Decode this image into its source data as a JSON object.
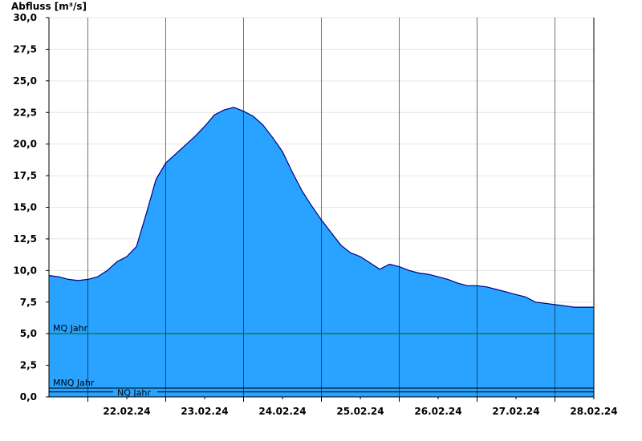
{
  "chart_data": {
    "type": "area",
    "ylabel": "Abfluss [m³/s]",
    "ylim": [
      0,
      30
    ],
    "yticks": [
      "0,0",
      "2,5",
      "5,0",
      "7,5",
      "10,0",
      "12,5",
      "15,0",
      "17,5",
      "20,0",
      "22,5",
      "25,0",
      "27,5",
      "30,0"
    ],
    "ytick_values": [
      0,
      2.5,
      5,
      7.5,
      10,
      12.5,
      15,
      17.5,
      20,
      22.5,
      25,
      27.5,
      30
    ],
    "xlim": [
      "2024-02-21T12:00",
      "2024-02-28T12:00"
    ],
    "xtick_labels": [
      "22.02.24",
      "23.02.24",
      "24.02.24",
      "25.02.24",
      "26.02.24",
      "27.02.24",
      "28.02.24"
    ],
    "day_boundaries": [
      "2024-02-22T00:00",
      "2024-02-23T00:00",
      "2024-02-24T00:00",
      "2024-02-25T00:00",
      "2024-02-26T00:00",
      "2024-02-27T00:00",
      "2024-02-28T00:00"
    ],
    "grid": true,
    "fill_color": "#29a3ff",
    "line_color": "#000080",
    "reference_lines": [
      {
        "label": "MQ Jahr",
        "value": 5.0,
        "color": "#006400"
      },
      {
        "label": "MNQ Jahr",
        "value": 0.7,
        "color": "#000000"
      },
      {
        "label": "NQ Jahr",
        "value": 0.4,
        "color": "#000000"
      }
    ],
    "series": [
      {
        "x": [
          "2024-02-21T12:00",
          "2024-02-21T15:00",
          "2024-02-21T18:00",
          "2024-02-21T21:00",
          "2024-02-22T00:00",
          "2024-02-22T03:00",
          "2024-02-22T06:00",
          "2024-02-22T09:00",
          "2024-02-22T12:00",
          "2024-02-22T15:00",
          "2024-02-22T18:00",
          "2024-02-22T21:00",
          "2024-02-23T00:00",
          "2024-02-23T03:00",
          "2024-02-23T06:00",
          "2024-02-23T09:00",
          "2024-02-23T12:00",
          "2024-02-23T15:00",
          "2024-02-23T18:00",
          "2024-02-23T21:00",
          "2024-02-24T00:00",
          "2024-02-24T03:00",
          "2024-02-24T06:00",
          "2024-02-24T09:00",
          "2024-02-24T12:00",
          "2024-02-24T15:00",
          "2024-02-24T18:00",
          "2024-02-24T21:00",
          "2024-02-25T00:00",
          "2024-02-25T03:00",
          "2024-02-25T06:00",
          "2024-02-25T09:00",
          "2024-02-25T12:00",
          "2024-02-25T15:00",
          "2024-02-25T18:00",
          "2024-02-25T21:00",
          "2024-02-26T00:00",
          "2024-02-26T03:00",
          "2024-02-26T06:00",
          "2024-02-26T09:00",
          "2024-02-26T12:00",
          "2024-02-26T15:00",
          "2024-02-26T18:00",
          "2024-02-26T21:00",
          "2024-02-27T00:00",
          "2024-02-27T03:00",
          "2024-02-27T06:00",
          "2024-02-27T09:00",
          "2024-02-27T12:00",
          "2024-02-27T15:00",
          "2024-02-27T18:00",
          "2024-02-27T21:00",
          "2024-02-28T00:00",
          "2024-02-28T03:00",
          "2024-02-28T06:00",
          "2024-02-28T09:00",
          "2024-02-28T12:00"
        ],
        "values": [
          9.6,
          9.5,
          9.3,
          9.2,
          9.3,
          9.5,
          10.0,
          10.7,
          11.1,
          11.9,
          14.5,
          17.2,
          18.5,
          19.2,
          19.9,
          20.6,
          21.4,
          22.3,
          22.7,
          22.9,
          22.6,
          22.2,
          21.5,
          20.5,
          19.4,
          17.8,
          16.3,
          15.1,
          14.0,
          13.0,
          12.0,
          11.4,
          11.1,
          10.6,
          10.1,
          10.5,
          10.3,
          10.0,
          9.8,
          9.7,
          9.5,
          9.3,
          9.0,
          8.8,
          8.8,
          8.7,
          8.5,
          8.3,
          8.1,
          7.9,
          7.5,
          7.4,
          7.3,
          7.2,
          7.1,
          7.1,
          7.1
        ]
      }
    ]
  }
}
